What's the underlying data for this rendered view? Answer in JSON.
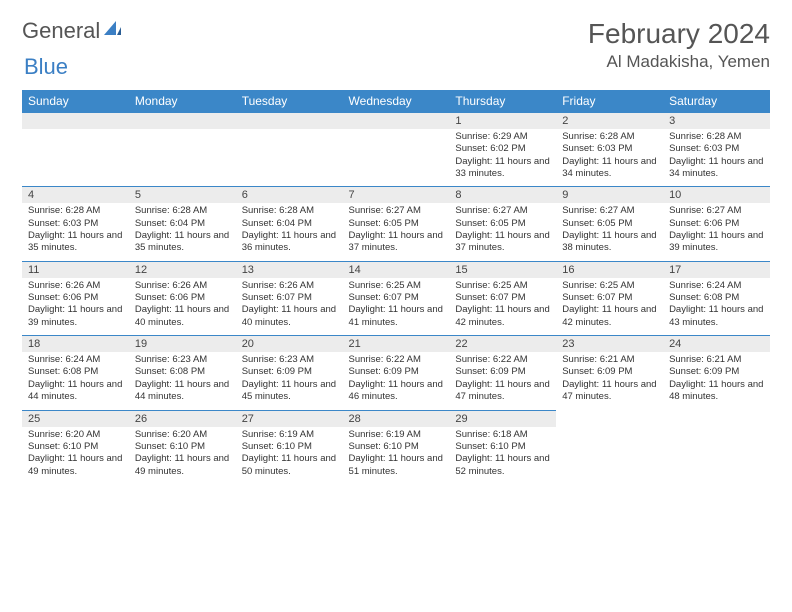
{
  "logo": {
    "text1": "General",
    "text2": "Blue"
  },
  "title": "February 2024",
  "location": "Al Madakisha, Yemen",
  "colors": {
    "headerBg": "#3b87c8",
    "dayNumBg": "#ececec",
    "borderTop": "#3b87c8"
  },
  "weekdays": [
    "Sunday",
    "Monday",
    "Tuesday",
    "Wednesday",
    "Thursday",
    "Friday",
    "Saturday"
  ],
  "startOffset": 4,
  "daysInMonth": 29,
  "days": [
    {
      "n": 1,
      "sunrise": "6:29 AM",
      "sunset": "6:02 PM",
      "daylight": "11 hours and 33 minutes."
    },
    {
      "n": 2,
      "sunrise": "6:28 AM",
      "sunset": "6:03 PM",
      "daylight": "11 hours and 34 minutes."
    },
    {
      "n": 3,
      "sunrise": "6:28 AM",
      "sunset": "6:03 PM",
      "daylight": "11 hours and 34 minutes."
    },
    {
      "n": 4,
      "sunrise": "6:28 AM",
      "sunset": "6:03 PM",
      "daylight": "11 hours and 35 minutes."
    },
    {
      "n": 5,
      "sunrise": "6:28 AM",
      "sunset": "6:04 PM",
      "daylight": "11 hours and 35 minutes."
    },
    {
      "n": 6,
      "sunrise": "6:28 AM",
      "sunset": "6:04 PM",
      "daylight": "11 hours and 36 minutes."
    },
    {
      "n": 7,
      "sunrise": "6:27 AM",
      "sunset": "6:05 PM",
      "daylight": "11 hours and 37 minutes."
    },
    {
      "n": 8,
      "sunrise": "6:27 AM",
      "sunset": "6:05 PM",
      "daylight": "11 hours and 37 minutes."
    },
    {
      "n": 9,
      "sunrise": "6:27 AM",
      "sunset": "6:05 PM",
      "daylight": "11 hours and 38 minutes."
    },
    {
      "n": 10,
      "sunrise": "6:27 AM",
      "sunset": "6:06 PM",
      "daylight": "11 hours and 39 minutes."
    },
    {
      "n": 11,
      "sunrise": "6:26 AM",
      "sunset": "6:06 PM",
      "daylight": "11 hours and 39 minutes."
    },
    {
      "n": 12,
      "sunrise": "6:26 AM",
      "sunset": "6:06 PM",
      "daylight": "11 hours and 40 minutes."
    },
    {
      "n": 13,
      "sunrise": "6:26 AM",
      "sunset": "6:07 PM",
      "daylight": "11 hours and 40 minutes."
    },
    {
      "n": 14,
      "sunrise": "6:25 AM",
      "sunset": "6:07 PM",
      "daylight": "11 hours and 41 minutes."
    },
    {
      "n": 15,
      "sunrise": "6:25 AM",
      "sunset": "6:07 PM",
      "daylight": "11 hours and 42 minutes."
    },
    {
      "n": 16,
      "sunrise": "6:25 AM",
      "sunset": "6:07 PM",
      "daylight": "11 hours and 42 minutes."
    },
    {
      "n": 17,
      "sunrise": "6:24 AM",
      "sunset": "6:08 PM",
      "daylight": "11 hours and 43 minutes."
    },
    {
      "n": 18,
      "sunrise": "6:24 AM",
      "sunset": "6:08 PM",
      "daylight": "11 hours and 44 minutes."
    },
    {
      "n": 19,
      "sunrise": "6:23 AM",
      "sunset": "6:08 PM",
      "daylight": "11 hours and 44 minutes."
    },
    {
      "n": 20,
      "sunrise": "6:23 AM",
      "sunset": "6:09 PM",
      "daylight": "11 hours and 45 minutes."
    },
    {
      "n": 21,
      "sunrise": "6:22 AM",
      "sunset": "6:09 PM",
      "daylight": "11 hours and 46 minutes."
    },
    {
      "n": 22,
      "sunrise": "6:22 AM",
      "sunset": "6:09 PM",
      "daylight": "11 hours and 47 minutes."
    },
    {
      "n": 23,
      "sunrise": "6:21 AM",
      "sunset": "6:09 PM",
      "daylight": "11 hours and 47 minutes."
    },
    {
      "n": 24,
      "sunrise": "6:21 AM",
      "sunset": "6:09 PM",
      "daylight": "11 hours and 48 minutes."
    },
    {
      "n": 25,
      "sunrise": "6:20 AM",
      "sunset": "6:10 PM",
      "daylight": "11 hours and 49 minutes."
    },
    {
      "n": 26,
      "sunrise": "6:20 AM",
      "sunset": "6:10 PM",
      "daylight": "11 hours and 49 minutes."
    },
    {
      "n": 27,
      "sunrise": "6:19 AM",
      "sunset": "6:10 PM",
      "daylight": "11 hours and 50 minutes."
    },
    {
      "n": 28,
      "sunrise": "6:19 AM",
      "sunset": "6:10 PM",
      "daylight": "11 hours and 51 minutes."
    },
    {
      "n": 29,
      "sunrise": "6:18 AM",
      "sunset": "6:10 PM",
      "daylight": "11 hours and 52 minutes."
    }
  ],
  "labels": {
    "sunrise": "Sunrise:",
    "sunset": "Sunset:",
    "daylight": "Daylight:"
  }
}
